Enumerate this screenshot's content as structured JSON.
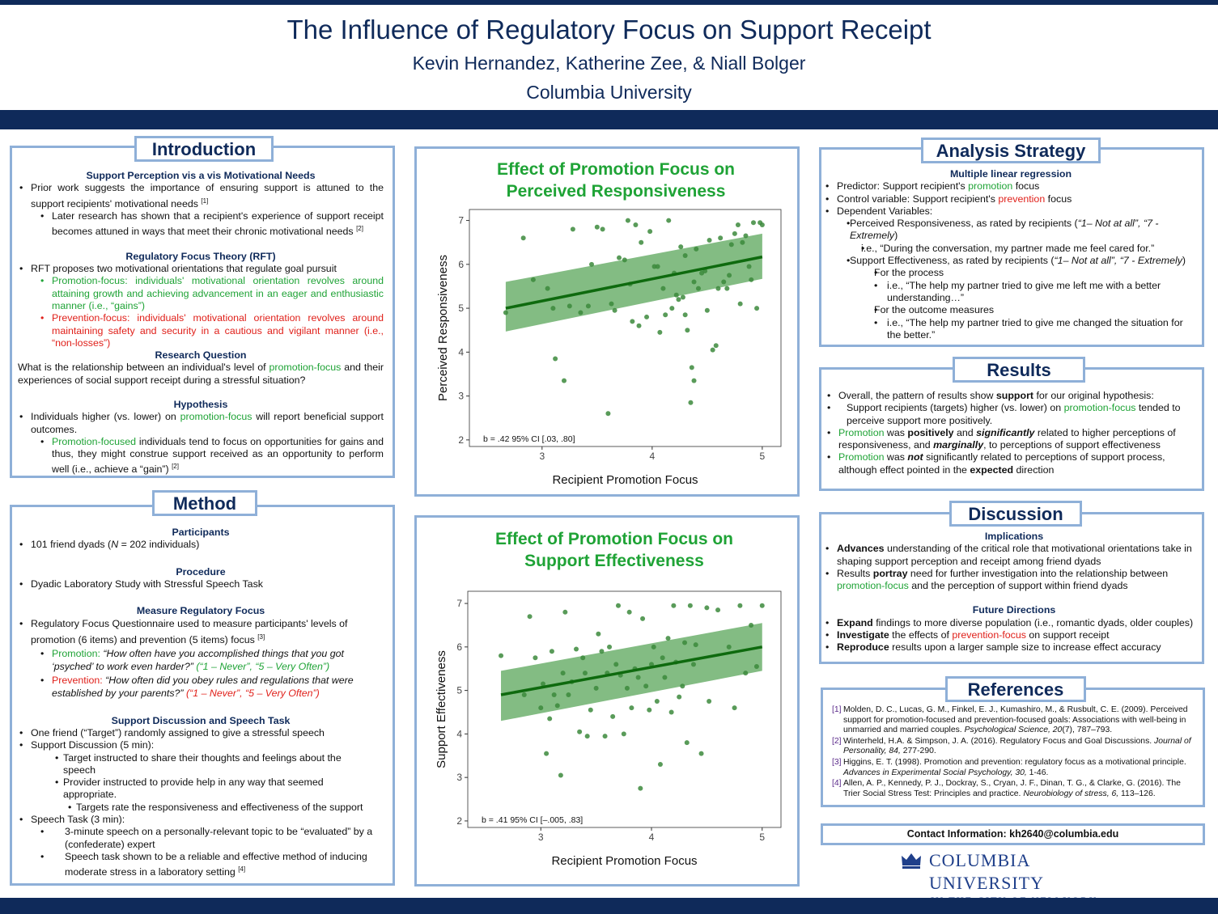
{
  "header": {
    "title": "The Influence of Regulatory Focus on Support Receipt",
    "authors": "Kevin Hernandez, Katherine Zee, & Niall Bolger",
    "institution": "Columbia University"
  },
  "introduction": {
    "title": "Introduction",
    "support_perception_heading": "Support Perception vis a vis Motivational Needs",
    "sp_1": "Prior work suggests the importance of ensuring support is attuned to the support recipients' motivational needs",
    "sp_1_ref": "[1]",
    "sp_2": "Later research has shown that a recipient's experience of support receipt becomes attuned in ways that meet their chronic motivational needs",
    "sp_2_ref": "[2]",
    "rft_heading": "Regulatory Focus Theory (RFT)",
    "rft_1": "RFT proposes two motivational orientations that regulate goal pursuit",
    "rft_promotion": "Promotion-focus: individuals' motivational orientation revolves around attaining growth and achieving advancement in an eager and enthusiastic manner (i.e., “gains”)",
    "rft_prevention": "Prevention-focus: individuals' motivational orientation revolves around maintaining safety and security in a cautious and vigilant manner (i.e., “non-losses”)",
    "rq_heading": "Research Question",
    "rq_before": "What is the relationship between an individual's level of ",
    "rq_green": "promotion-focus",
    "rq_after": " and their experiences of social support receipt during a stressful situation?",
    "hyp_heading": "Hypothesis",
    "hyp_1_before": "Individuals higher (vs. lower) on ",
    "hyp_1_green": "promotion-focus",
    "hyp_1_after": " will report beneficial support outcomes.",
    "hyp_2_green": "Promotion-focused",
    "hyp_2_after": " individuals tend to focus on opportunities for gains and thus, they might construe support received as an opportunity to perform well (i.e., achieve a “gain”)",
    "hyp_2_ref": "[2]"
  },
  "method": {
    "title": "Method",
    "participants_heading": "Participants",
    "participants_before": "101 friend dyads (",
    "participants_n": "N",
    "participants_after": " = 202 individuals)",
    "procedure_heading": "Procedure",
    "procedure_1": "Dyadic Laboratory Study with Stressful Speech Task",
    "measure_heading": "Measure Regulatory Focus",
    "measure_1": "Regulatory Focus Questionnaire used to measure participants' levels of promotion (6 items) and prevention (5 items) focus",
    "measure_1_ref": "[3]",
    "promotion_label": "Promotion:",
    "promotion_q": " “How often have you accomplished things that you got ‘psyched’ to work even harder?”",
    "promotion_scale": " (“1 – Never”, “5 – Very Often”)",
    "prevention_label": "Prevention:",
    "prevention_q": " “How often did you obey rules and regulations that were established by your parents?”",
    "prevention_scale": " (“1 – Never”, “5 – Very Often”)",
    "sd_heading": "Support Discussion and Speech Task",
    "sd_1": "One friend (“Target”) randomly assigned to give a stressful speech",
    "sd_2": "Support Discussion (5 min):",
    "sd_2a": "Target instructed to share their thoughts and feelings about the speech",
    "sd_2b": "Provider instructed to provide help in any way that seemed appropriate.",
    "sd_2c": "Targets rate the responsiveness and effectiveness of the support",
    "sd_3": "Speech Task (3 min):",
    "sd_3a": "3-minute speech on a personally-relevant topic to be “evaluated” by a (confederate) expert",
    "sd_3b": "Speech task shown to be a reliable and effective method of inducing moderate stress in a laboratory setting",
    "sd_3b_ref": "[4]"
  },
  "chart1": {
    "title_line1": "Effect of Promotion Focus on",
    "title_line2": "Perceived Responsiveness",
    "annotation": "b = .42 95% CI [.03, .80]"
  },
  "chart2": {
    "title_line1": "Effect of Promotion Focus on",
    "title_line2": "Support Effectiveness",
    "annotation": "b = .41 95% CI [–.005, .83]"
  },
  "chart_data": [
    {
      "type": "scatter",
      "title": "Effect of Promotion Focus on Perceived Responsiveness",
      "xlabel": "Recipient Promotion Focus",
      "ylabel": "Perceived Responsiveness",
      "xlim": [
        2.34,
        5.17
      ],
      "ylim": [
        1.85,
        7.25
      ],
      "xticks": [
        3,
        4,
        5
      ],
      "yticks": [
        2,
        3,
        4,
        5,
        6,
        7
      ],
      "regression": {
        "x": [
          2.67,
          5.0
        ],
        "y": [
          5.0,
          6.17
        ]
      },
      "ci_band": {
        "x": [
          2.67,
          5.0
        ],
        "lower": [
          4.47,
          5.67
        ],
        "upper": [
          5.6,
          6.7
        ]
      },
      "annotation": "b = .42 95% CI [.03, .80]",
      "points": [
        [
          2.67,
          4.9
        ],
        [
          2.83,
          6.6
        ],
        [
          2.92,
          5.65
        ],
        [
          3.05,
          5.45
        ],
        [
          3.1,
          5.0
        ],
        [
          3.12,
          3.85
        ],
        [
          3.2,
          3.35
        ],
        [
          3.25,
          5.05
        ],
        [
          3.28,
          6.8
        ],
        [
          3.35,
          4.9
        ],
        [
          3.42,
          5.05
        ],
        [
          3.45,
          6.0
        ],
        [
          3.5,
          6.85
        ],
        [
          3.55,
          6.8
        ],
        [
          3.6,
          2.6
        ],
        [
          3.63,
          5.1
        ],
        [
          3.66,
          4.95
        ],
        [
          3.7,
          6.15
        ],
        [
          3.75,
          6.1
        ],
        [
          3.78,
          7.0
        ],
        [
          3.8,
          5.55
        ],
        [
          3.82,
          4.7
        ],
        [
          3.85,
          6.9
        ],
        [
          3.88,
          4.6
        ],
        [
          3.9,
          6.5
        ],
        [
          3.95,
          4.8
        ],
        [
          3.98,
          6.75
        ],
        [
          4.02,
          5.95
        ],
        [
          4.05,
          5.95
        ],
        [
          4.07,
          4.45
        ],
        [
          4.1,
          5.45
        ],
        [
          4.12,
          4.85
        ],
        [
          4.15,
          7.0
        ],
        [
          4.18,
          5.0
        ],
        [
          4.2,
          5.8
        ],
        [
          4.22,
          5.3
        ],
        [
          4.24,
          5.2
        ],
        [
          4.26,
          6.4
        ],
        [
          4.28,
          5.25
        ],
        [
          4.3,
          4.85
        ],
        [
          4.3,
          6.2
        ],
        [
          4.32,
          4.5
        ],
        [
          4.35,
          2.85
        ],
        [
          4.36,
          3.65
        ],
        [
          4.38,
          3.35
        ],
        [
          4.38,
          5.6
        ],
        [
          4.4,
          6.35
        ],
        [
          4.42,
          5.45
        ],
        [
          4.45,
          5.8
        ],
        [
          4.48,
          5.85
        ],
        [
          4.5,
          4.95
        ],
        [
          4.52,
          6.55
        ],
        [
          4.55,
          4.05
        ],
        [
          4.58,
          4.15
        ],
        [
          4.6,
          5.45
        ],
        [
          4.62,
          6.6
        ],
        [
          4.65,
          5.6
        ],
        [
          4.68,
          5.45
        ],
        [
          4.7,
          5.75
        ],
        [
          4.72,
          6.45
        ],
        [
          4.75,
          6.7
        ],
        [
          4.78,
          6.9
        ],
        [
          4.8,
          5.1
        ],
        [
          4.82,
          6.5
        ],
        [
          4.85,
          6.65
        ],
        [
          4.88,
          5.95
        ],
        [
          4.9,
          5.65
        ],
        [
          4.92,
          6.95
        ],
        [
          4.95,
          5.0
        ],
        [
          4.98,
          6.95
        ],
        [
          5.0,
          6.9
        ]
      ]
    },
    {
      "type": "scatter",
      "title": "Effect of Promotion Focus on Support Effectiveness",
      "xlabel": "Recipient Promotion Focus",
      "ylabel": "Support Effectiveness",
      "xlim": [
        2.34,
        5.17
      ],
      "ylim": [
        1.85,
        7.28
      ],
      "xticks": [
        3,
        4,
        5
      ],
      "yticks": [
        2,
        3,
        4,
        5,
        6,
        7
      ],
      "regression": {
        "x": [
          2.64,
          5.0
        ],
        "y": [
          4.9,
          6.0
        ]
      },
      "ci_band": {
        "x": [
          2.64,
          5.0
        ],
        "lower": [
          4.3,
          5.45
        ],
        "upper": [
          5.45,
          6.55
        ]
      },
      "annotation": "b = .41 95% CI [–.005, .83]",
      "points": [
        [
          2.64,
          5.8
        ],
        [
          2.85,
          4.9
        ],
        [
          2.9,
          6.7
        ],
        [
          2.95,
          5.75
        ],
        [
          3.0,
          4.6
        ],
        [
          3.02,
          5.15
        ],
        [
          3.05,
          3.55
        ],
        [
          3.08,
          4.35
        ],
        [
          3.1,
          5.9
        ],
        [
          3.12,
          4.9
        ],
        [
          3.15,
          4.65
        ],
        [
          3.18,
          3.05
        ],
        [
          3.2,
          5.4
        ],
        [
          3.22,
          6.8
        ],
        [
          3.25,
          4.9
        ],
        [
          3.28,
          5.2
        ],
        [
          3.32,
          5.95
        ],
        [
          3.35,
          4.05
        ],
        [
          3.38,
          5.75
        ],
        [
          3.4,
          5.4
        ],
        [
          3.42,
          3.95
        ],
        [
          3.45,
          4.55
        ],
        [
          3.5,
          5.05
        ],
        [
          3.52,
          6.3
        ],
        [
          3.55,
          5.9
        ],
        [
          3.58,
          3.95
        ],
        [
          3.6,
          5.4
        ],
        [
          3.62,
          6.0
        ],
        [
          3.65,
          4.4
        ],
        [
          3.68,
          5.6
        ],
        [
          3.7,
          6.95
        ],
        [
          3.72,
          5.35
        ],
        [
          3.75,
          4.0
        ],
        [
          3.78,
          5.05
        ],
        [
          3.8,
          6.8
        ],
        [
          3.82,
          4.6
        ],
        [
          3.85,
          5.5
        ],
        [
          3.88,
          5.3
        ],
        [
          3.9,
          2.75
        ],
        [
          3.92,
          6.65
        ],
        [
          3.95,
          5.1
        ],
        [
          3.98,
          4.55
        ],
        [
          4.0,
          5.6
        ],
        [
          4.02,
          6.0
        ],
        [
          4.05,
          4.75
        ],
        [
          4.08,
          3.3
        ],
        [
          4.1,
          5.75
        ],
        [
          4.12,
          5.3
        ],
        [
          4.15,
          6.2
        ],
        [
          4.18,
          4.5
        ],
        [
          4.2,
          6.95
        ],
        [
          4.22,
          5.65
        ],
        [
          4.25,
          4.85
        ],
        [
          4.28,
          5.1
        ],
        [
          4.3,
          6.1
        ],
        [
          4.32,
          3.8
        ],
        [
          4.35,
          6.95
        ],
        [
          4.38,
          5.6
        ],
        [
          4.4,
          6.05
        ],
        [
          4.45,
          3.55
        ],
        [
          4.5,
          6.9
        ],
        [
          4.52,
          4.75
        ],
        [
          4.6,
          6.85
        ],
        [
          4.7,
          6.0
        ],
        [
          4.75,
          4.6
        ],
        [
          4.8,
          6.95
        ],
        [
          4.85,
          5.4
        ],
        [
          4.9,
          6.5
        ],
        [
          4.95,
          5.55
        ],
        [
          5.0,
          6.95
        ]
      ]
    }
  ],
  "analysis": {
    "title": "Analysis Strategy",
    "mlr_heading": "Multiple linear regression",
    "predictor_before": "Predictor: Support recipient's ",
    "predictor_green": "promotion",
    "predictor_after": " focus",
    "control_before": "Control variable: Support recipient's ",
    "control_red": "prevention",
    "control_after": " focus",
    "dv": "Dependent Variables:",
    "pr_before": "Perceived Responsiveness, as rated by recipients (",
    "pr_scale": "“1– Not at all”, “7 - Extremely",
    "pr_after": ")",
    "pr_example": "i.e., “During the conversation, my partner made me feel cared for.”",
    "se_before": "Support Effectiveness, as rated by recipients (",
    "se_scale": "“1– Not at all”, “7 - Extremely",
    "se_after": ")",
    "process": "For the process",
    "process_example": "i.e., “The help my partner tried to give me left me with a better understanding…”",
    "outcome": "For the outcome measures",
    "outcome_example": "i.e., “The help my partner tried to give me changed the situation for the better.”"
  },
  "results": {
    "title": "Results",
    "r1_before": "Overall, the pattern of results show ",
    "r1_bold": "support",
    "r1_after": " for our original hypothesis:",
    "r1a_before": "Support recipients (targets) higher (vs. lower) on ",
    "r1a_green": "promotion-focus",
    "r1a_after": " tended to perceive support more positively.",
    "r2_green": "Promotion",
    "r2_was": " was ",
    "r2_bold": "positively",
    "r2_and": " and ",
    "r2_bi": "significantly",
    "r2_mid": " related to higher perceptions of responsiveness, and ",
    "r2_bi2": "marginally",
    "r2_end": ", to perceptions of support effectiveness",
    "r3_green": "Promotion",
    "r3_was": " was ",
    "r3_bi": "not",
    "r3_mid": " significantly related to perceptions of support process, although effect pointed in the ",
    "r3_bold": "expected",
    "r3_end": " direction"
  },
  "discussion": {
    "title": "Discussion",
    "implications_heading": "Implications",
    "i1_bold": "Advances",
    "i1_rest": " understanding of the critical role that motivational orientations take in shaping support perception and receipt among friend dyads",
    "i2_before": "Results ",
    "i2_bold": "portray",
    "i2_mid": " need for further investigation into the relationship between ",
    "i2_green": "promotion-focus",
    "i2_end": " and the perception of support within friend dyads",
    "future_heading": "Future Directions",
    "f1_bold": "Expand",
    "f1_rest": " findings to more diverse population (i.e., romantic dyads, older couples)",
    "f2_bold": "Investigate",
    "f2_mid": " the effects of ",
    "f2_red": "prevention-focus",
    "f2_end": " on support receipt",
    "f3_bold": "Reproduce",
    "f3_rest": " results upon a larger sample size to increase effect accuracy"
  },
  "references": {
    "title": "References",
    "items": [
      {
        "num": "[1]",
        "text": "Molden, D. C., Lucas, G. M., Finkel, E. J., Kumashiro, M., & Rusbult, C. E. (2009). Perceived support for promotion-focused and prevention-focused goals: Associations with well-being in unmarried and married couples. ",
        "italic": "Psychological Science, 20",
        "tail": "(7), 787–793."
      },
      {
        "num": "[2]",
        "text": "Winterheld, H.A. & Simpson, J. A. (2016). Regulatory Focus and Goal Discussions. ",
        "italic": "Journal of Personality, 84,",
        "tail": " 277-290."
      },
      {
        "num": "[3]",
        "text": "Higgins, E. T. (1998). Promotion and prevention: regulatory focus as a motivational principle. ",
        "italic": "Advances in Experimental Social Psychology, 30,",
        "tail": " 1-46."
      },
      {
        "num": "[4]",
        "text": "Allen, A. P., Kennedy, P. J., Dockray, S., Cryan, J. F., Dinan, T. G., & Clarke, G. (2016). The Trier Social Stress Test: Principles and practice. ",
        "italic": "Neurobiology of stress, 6,",
        "tail": " 113–126."
      }
    ]
  },
  "contact": "Contact Information: kh2640@columbia.edu",
  "logo": {
    "main": "COLUMBIA UNIVERSITY",
    "sub": "IN THE CITY OF NEW YORK",
    "icon": "crown-icon"
  },
  "colors": {
    "navy": "#0f2a5a",
    "border": "#8fb0d8",
    "green": "#1fa336",
    "red": "#e0201a",
    "point": "#3c8a3c",
    "band": "#5aa55a",
    "line": "#0e6a0e"
  }
}
